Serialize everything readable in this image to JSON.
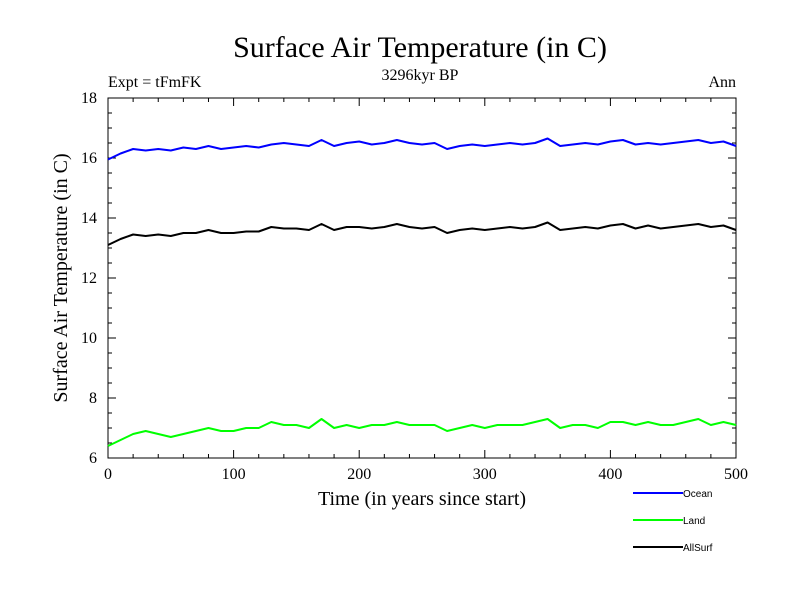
{
  "chart_data": {
    "type": "line",
    "title": "Surface Air Temperature (in C)",
    "subtitle": "3296kyr BP",
    "left_label": "Expt = tFmFK",
    "right_label": "Ann",
    "xlabel": "Time (in years since start)",
    "ylabel": "Surface Air Temperature (in C)",
    "xlim": [
      0,
      500
    ],
    "ylim": [
      6,
      18
    ],
    "x_ticks": [
      0,
      100,
      200,
      300,
      400,
      500
    ],
    "y_ticks": [
      6,
      8,
      10,
      12,
      14,
      16,
      18
    ],
    "x_tick_labels": [
      "0",
      "100",
      "200",
      "300",
      "400",
      "500"
    ],
    "y_tick_labels": [
      "6",
      "8",
      "10",
      "12",
      "14",
      "16",
      "18"
    ],
    "series": [
      {
        "name": "Ocean",
        "color": "#0000ff",
        "x": [
          0,
          10,
          20,
          30,
          40,
          50,
          60,
          70,
          80,
          90,
          100,
          110,
          120,
          130,
          140,
          150,
          160,
          170,
          180,
          190,
          200,
          210,
          220,
          230,
          240,
          250,
          260,
          270,
          280,
          290,
          300,
          310,
          320,
          330,
          340,
          350,
          360,
          370,
          380,
          390,
          400,
          410,
          420,
          430,
          440,
          450,
          460,
          470,
          480,
          490,
          500
        ],
        "values": [
          15.95,
          16.15,
          16.3,
          16.25,
          16.3,
          16.25,
          16.35,
          16.3,
          16.4,
          16.3,
          16.35,
          16.4,
          16.35,
          16.45,
          16.5,
          16.45,
          16.4,
          16.6,
          16.4,
          16.5,
          16.55,
          16.45,
          16.5,
          16.6,
          16.5,
          16.45,
          16.5,
          16.3,
          16.4,
          16.45,
          16.4,
          16.45,
          16.5,
          16.45,
          16.5,
          16.65,
          16.4,
          16.45,
          16.5,
          16.45,
          16.55,
          16.6,
          16.45,
          16.5,
          16.45,
          16.5,
          16.55,
          16.6,
          16.5,
          16.55,
          16.4
        ]
      },
      {
        "name": "Land",
        "color": "#00ff00",
        "x": [
          0,
          10,
          20,
          30,
          40,
          50,
          60,
          70,
          80,
          90,
          100,
          110,
          120,
          130,
          140,
          150,
          160,
          170,
          180,
          190,
          200,
          210,
          220,
          230,
          240,
          250,
          260,
          270,
          280,
          290,
          300,
          310,
          320,
          330,
          340,
          350,
          360,
          370,
          380,
          390,
          400,
          410,
          420,
          430,
          440,
          450,
          460,
          470,
          480,
          490,
          500
        ],
        "values": [
          6.4,
          6.6,
          6.8,
          6.9,
          6.8,
          6.7,
          6.8,
          6.9,
          7.0,
          6.9,
          6.9,
          7.0,
          7.0,
          7.2,
          7.1,
          7.1,
          7.0,
          7.3,
          7.0,
          7.1,
          7.0,
          7.1,
          7.1,
          7.2,
          7.1,
          7.1,
          7.1,
          6.9,
          7.0,
          7.1,
          7.0,
          7.1,
          7.1,
          7.1,
          7.2,
          7.3,
          7.0,
          7.1,
          7.1,
          7.0,
          7.2,
          7.2,
          7.1,
          7.2,
          7.1,
          7.1,
          7.2,
          7.3,
          7.1,
          7.2,
          7.1
        ]
      },
      {
        "name": "AllSurf",
        "color": "#000000",
        "x": [
          0,
          10,
          20,
          30,
          40,
          50,
          60,
          70,
          80,
          90,
          100,
          110,
          120,
          130,
          140,
          150,
          160,
          170,
          180,
          190,
          200,
          210,
          220,
          230,
          240,
          250,
          260,
          270,
          280,
          290,
          300,
          310,
          320,
          330,
          340,
          350,
          360,
          370,
          380,
          390,
          400,
          410,
          420,
          430,
          440,
          450,
          460,
          470,
          480,
          490,
          500
        ],
        "values": [
          13.1,
          13.3,
          13.45,
          13.4,
          13.45,
          13.4,
          13.5,
          13.5,
          13.6,
          13.5,
          13.5,
          13.55,
          13.55,
          13.7,
          13.65,
          13.65,
          13.6,
          13.8,
          13.6,
          13.7,
          13.7,
          13.65,
          13.7,
          13.8,
          13.7,
          13.65,
          13.7,
          13.5,
          13.6,
          13.65,
          13.6,
          13.65,
          13.7,
          13.65,
          13.7,
          13.85,
          13.6,
          13.65,
          13.7,
          13.65,
          13.75,
          13.8,
          13.65,
          13.75,
          13.65,
          13.7,
          13.75,
          13.8,
          13.7,
          13.75,
          13.6
        ]
      }
    ],
    "legend_position": "bottom-right"
  }
}
